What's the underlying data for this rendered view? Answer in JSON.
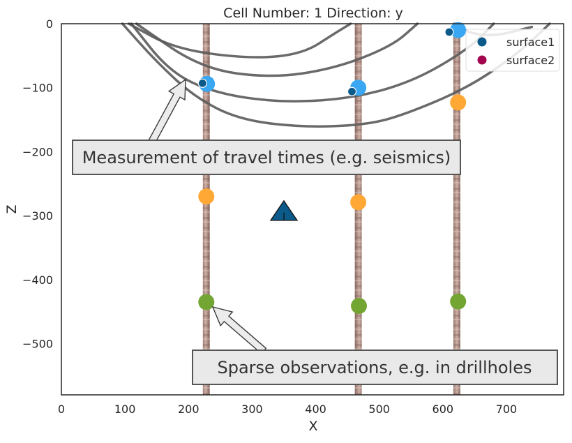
{
  "chart_data": {
    "type": "scatter",
    "title": "Cell Number: 1 Direction: y",
    "xlabel": "X",
    "ylabel": "Z",
    "xlim": [
      0,
      790
    ],
    "ylim": [
      -580,
      0
    ],
    "xticks": [
      0,
      100,
      200,
      300,
      400,
      500,
      600,
      700
    ],
    "yticks": [
      0,
      -100,
      -200,
      -300,
      -400,
      -500
    ],
    "ytick_labels": [
      "0",
      "−100",
      "−200",
      "−300",
      "−400",
      "−500"
    ],
    "grid": false,
    "legend": {
      "placement": "top-right",
      "entries": [
        {
          "name": "surface1",
          "color": "#0c5a8a"
        },
        {
          "name": "surface2",
          "color": "#a3064f"
        }
      ]
    },
    "drillholes": [
      {
        "x": 228,
        "top": 0,
        "bottom": -580
      },
      {
        "x": 467,
        "top": 0,
        "bottom": -580
      },
      {
        "x": 622,
        "top": 0,
        "bottom": -580
      }
    ],
    "series": [
      {
        "color": "#3aa7f3",
        "points": [
          [
            229,
            -94
          ],
          [
            467,
            -100
          ],
          [
            624,
            -10
          ]
        ]
      },
      {
        "color": "#ffa835",
        "points": [
          [
            228,
            -270
          ],
          [
            467,
            -279
          ],
          [
            624,
            -123
          ]
        ]
      },
      {
        "color": "#73a532",
        "points": [
          [
            228,
            -435
          ],
          [
            468,
            -441
          ],
          [
            624,
            -434
          ]
        ]
      },
      {
        "color": "#0c5a8a",
        "points": [
          [
            222,
            -93
          ],
          [
            457,
            -106
          ],
          [
            610,
            -13
          ]
        ]
      }
    ],
    "contours": [
      [
        [
          106,
          0
        ],
        [
          180,
          -40
        ],
        [
          300,
          -55
        ],
        [
          380,
          -47
        ],
        [
          430,
          -15
        ],
        [
          455,
          0
        ]
      ],
      [
        [
          118,
          0
        ],
        [
          220,
          -70
        ],
        [
          330,
          -85
        ],
        [
          430,
          -70
        ],
        [
          520,
          -35
        ],
        [
          560,
          0
        ]
      ],
      [
        [
          110,
          0
        ],
        [
          170,
          -75
        ],
        [
          240,
          -108
        ],
        [
          340,
          -123
        ],
        [
          450,
          -118
        ],
        [
          550,
          -92
        ],
        [
          640,
          -40
        ],
        [
          680,
          0
        ]
      ],
      [
        [
          96,
          0
        ],
        [
          150,
          -60
        ],
        [
          210,
          -115
        ],
        [
          280,
          -150
        ],
        [
          380,
          -162
        ],
        [
          480,
          -158
        ],
        [
          540,
          -142
        ],
        [
          640,
          -100
        ],
        [
          720,
          -45
        ],
        [
          768,
          0
        ]
      ],
      [
        [
          618,
          0
        ],
        [
          640,
          -14
        ],
        [
          680,
          -20
        ],
        [
          740,
          -5
        ]
      ]
    ],
    "marker": {
      "type": "triangle",
      "x": 350,
      "y": -292,
      "color": "#0c5a8a"
    },
    "annotations": [
      {
        "text": "Measurement of travel times (e.g. seismics)"
      },
      {
        "text": "Sparse observations, e.g. in drillholes"
      }
    ]
  }
}
